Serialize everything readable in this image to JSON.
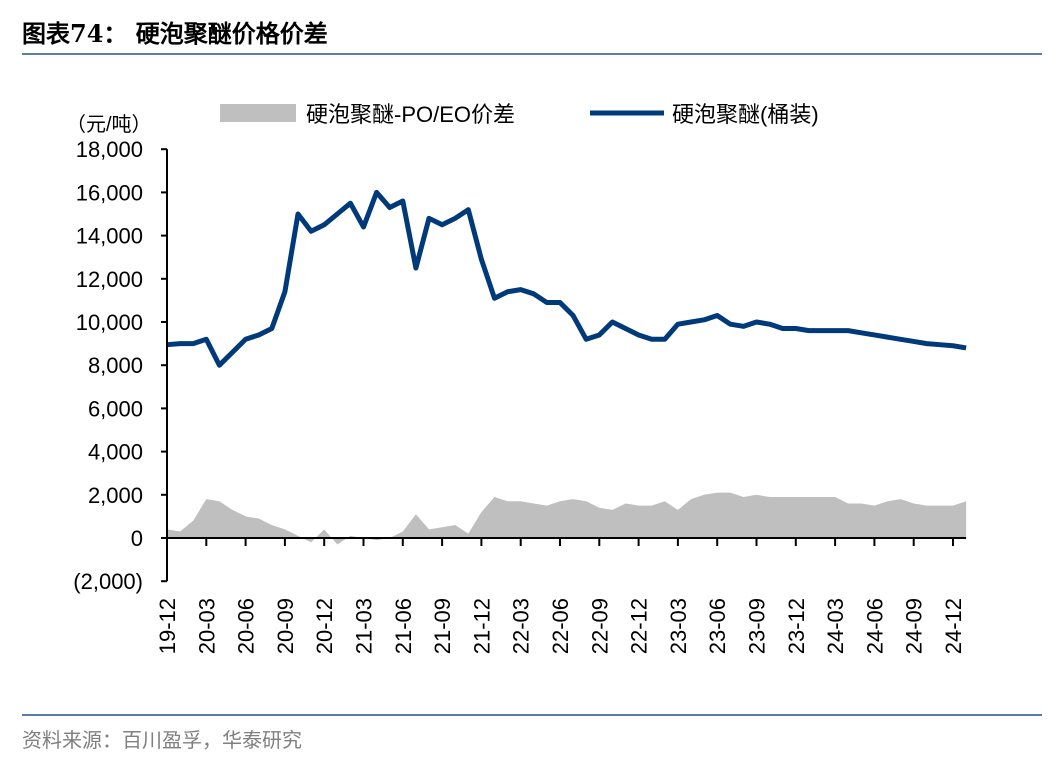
{
  "header": {
    "title": "图表74：  硬泡聚醚价格价差"
  },
  "footer": {
    "source": "资料来源：百川盈孚，华泰研究"
  },
  "chart_data": {
    "type": "line+area",
    "ylabel": "（元/吨）",
    "ylim": [
      -2000,
      18000
    ],
    "yticks": [
      -2000,
      0,
      2000,
      4000,
      6000,
      8000,
      10000,
      12000,
      14000,
      16000,
      18000
    ],
    "ytick_labels": [
      "(2,000)",
      "0",
      "2,000",
      "4,000",
      "6,000",
      "8,000",
      "10,000",
      "12,000",
      "14,000",
      "16,000",
      "18,000"
    ],
    "xtick_labels": [
      "19-12",
      "20-03",
      "20-06",
      "20-09",
      "20-12",
      "21-03",
      "21-06",
      "21-09",
      "21-12",
      "22-03",
      "22-06",
      "22-09",
      "22-12",
      "23-03",
      "23-06",
      "23-09",
      "23-12",
      "24-03",
      "24-06",
      "24-09",
      "24-12"
    ],
    "legend_position": "top",
    "grid": false,
    "x": [
      "19-12",
      "20-01",
      "20-02",
      "20-03",
      "20-04",
      "20-05",
      "20-06",
      "20-07",
      "20-08",
      "20-09",
      "20-10",
      "20-11",
      "20-12",
      "21-01",
      "21-02",
      "21-03",
      "21-04",
      "21-05",
      "21-06",
      "21-07",
      "21-08",
      "21-09",
      "21-10",
      "21-11",
      "21-12",
      "22-01",
      "22-02",
      "22-03",
      "22-04",
      "22-05",
      "22-06",
      "22-07",
      "22-08",
      "22-09",
      "22-10",
      "22-11",
      "22-12",
      "23-01",
      "23-02",
      "23-03",
      "23-04",
      "23-05",
      "23-06",
      "23-07",
      "23-08",
      "23-09",
      "23-10",
      "23-11",
      "23-12",
      "24-01",
      "24-02",
      "24-03",
      "24-04",
      "24-05",
      "24-06",
      "24-07",
      "24-08",
      "24-09",
      "24-10",
      "24-11",
      "24-12",
      "25-01"
    ],
    "series": [
      {
        "name": "硬泡聚醚-PO/EO价差",
        "type": "area",
        "color": "#bfbfbf",
        "values": [
          400,
          300,
          800,
          1800,
          1700,
          1300,
          1000,
          900,
          600,
          400,
          100,
          -200,
          400,
          -300,
          100,
          0,
          -100,
          0,
          300,
          1100,
          400,
          500,
          600,
          200,
          1200,
          1900,
          1700,
          1700,
          1600,
          1500,
          1700,
          1800,
          1700,
          1400,
          1300,
          1600,
          1500,
          1500,
          1700,
          1300,
          1800,
          2000,
          2100,
          2100,
          1900,
          2000,
          1900,
          1900,
          1900,
          1900,
          1900,
          1900,
          1600,
          1600,
          1500,
          1700,
          1800,
          1600,
          1500,
          1500,
          1500,
          1700
        ]
      },
      {
        "name": "硬泡聚醚(桶装)",
        "type": "line",
        "color": "#003a7a",
        "values": [
          8950,
          9000,
          9000,
          9200,
          8000,
          8600,
          9200,
          9400,
          9700,
          11400,
          15000,
          14200,
          14500,
          15000,
          15500,
          14400,
          16000,
          15300,
          15600,
          12500,
          14800,
          14500,
          14800,
          15200,
          12900,
          11100,
          11400,
          11500,
          11300,
          10900,
          10900,
          10300,
          9200,
          9400,
          10000,
          9700,
          9400,
          9200,
          9200,
          9900,
          10000,
          10100,
          10300,
          9900,
          9800,
          10000,
          9900,
          9700,
          9700,
          9600,
          9600,
          9600,
          9600,
          9500,
          9400,
          9300,
          9200,
          9100,
          9000,
          8950,
          8900,
          8800
        ]
      }
    ]
  }
}
